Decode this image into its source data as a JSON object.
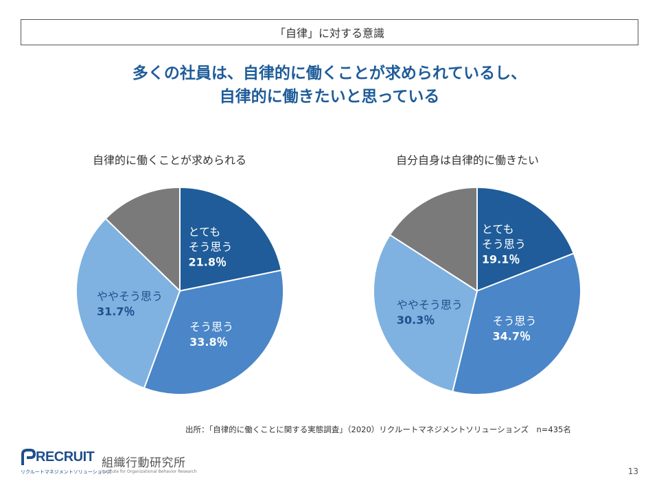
{
  "header": {
    "title": "「自律」に対する意識"
  },
  "headline": {
    "line1": "多くの社員は、自律的に働くことが求められているし、",
    "line2": "自律的に働きたいと思っている"
  },
  "colors": {
    "very_agree": "#1f5c99",
    "agree": "#4a86c8",
    "somewhat_agree": "#7fb2e0",
    "other": "#7a7a7a",
    "headline": "#1f5c99"
  },
  "chart_data": [
    {
      "type": "pie",
      "title": "自律的に働くことが求められる",
      "slices": [
        {
          "label_line1": "とても",
          "label_line2": "そう思う",
          "value": 21.8,
          "value_text": "21.8％",
          "color": "#1f5c99",
          "text_color": "#ffffff"
        },
        {
          "label_line1": "そう思う",
          "label_line2": "",
          "value": 33.8,
          "value_text": "33.8％",
          "color": "#4a86c8",
          "text_color": "#ffffff"
        },
        {
          "label_line1": "ややそう思う",
          "label_line2": "",
          "value": 31.7,
          "value_text": "31.7％",
          "color": "#7fb2e0",
          "text_color": "#1f4e8c"
        },
        {
          "label_line1": "",
          "label_line2": "",
          "value": 12.7,
          "value_text": "",
          "color": "#7a7a7a",
          "text_color": "#ffffff"
        }
      ]
    },
    {
      "type": "pie",
      "title": "自分自身は自律的に働きたい",
      "slices": [
        {
          "label_line1": "とても",
          "label_line2": "そう思う",
          "value": 19.1,
          "value_text": "19.1％",
          "color": "#1f5c99",
          "text_color": "#ffffff"
        },
        {
          "label_line1": "そう思う",
          "label_line2": "",
          "value": 34.7,
          "value_text": "34.7％",
          "color": "#4a86c8",
          "text_color": "#ffffff"
        },
        {
          "label_line1": "ややそう思う",
          "label_line2": "",
          "value": 30.3,
          "value_text": "30.3％",
          "color": "#7fb2e0",
          "text_color": "#1f4e8c"
        },
        {
          "label_line1": "",
          "label_line2": "",
          "value": 15.9,
          "value_text": "",
          "color": "#7a7a7a",
          "text_color": "#ffffff"
        }
      ]
    }
  ],
  "source": {
    "text": "出所：「自律的に働くことに関する実態調査」（2020）リクルートマネジメントソリューションズ　n=435名"
  },
  "logos": {
    "recruit": "RECRUIT",
    "recruit_sub": "リクルートマネジメントソリューションズ",
    "ioi": "組織行動研究所",
    "ioi_sub": "Institute for Organizational Behavior Research"
  },
  "page": {
    "number": "13"
  }
}
